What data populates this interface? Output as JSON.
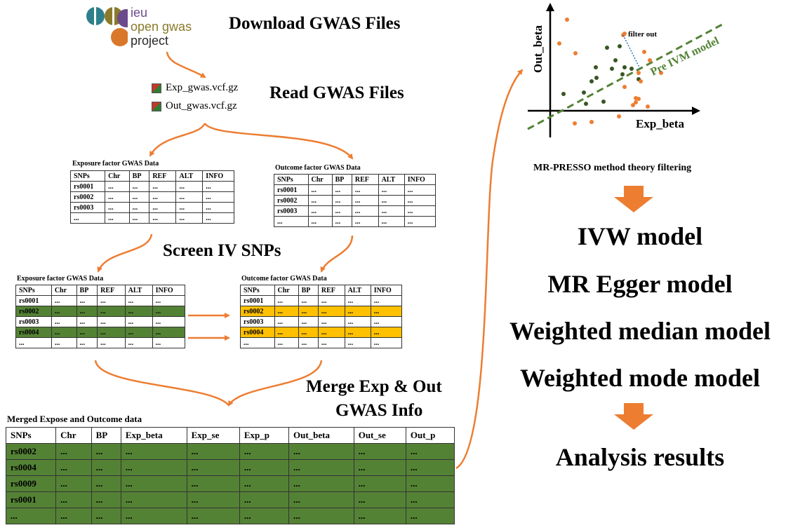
{
  "logo": {
    "line1": "ieu",
    "line2": "open gwas",
    "line3": "project"
  },
  "steps": {
    "download": "Download  GWAS  Files",
    "read": "Read  GWAS  Files",
    "screen": "Screen  IV  SNPs",
    "merge_line1": "Merge Exp & Out",
    "merge_line2": "GWAS Info"
  },
  "files": {
    "exp": "Exp_gwas.vcf.gz",
    "out": "Out_gwas.vcf.gz"
  },
  "tables": {
    "headers": [
      "SNPs",
      "Chr",
      "BP",
      "REF",
      "ALT",
      "INFO"
    ],
    "exposure_caption": "Exposure factor GWAS Data",
    "outcome_caption": "Outcome factor GWAS Data",
    "rows": [
      [
        "rs0001",
        "...",
        "...",
        "...",
        "...",
        "..."
      ],
      [
        "rs0002",
        "...",
        "...",
        "...",
        "...",
        "..."
      ],
      [
        "rs0003",
        "...",
        "...",
        "...",
        "...",
        "..."
      ],
      [
        "...",
        "...",
        "...",
        "...",
        "...",
        "..."
      ]
    ],
    "screened_rows": [
      [
        "rs0001",
        "...",
        "...",
        "...",
        "...",
        "..."
      ],
      [
        "rs0002",
        "...",
        "...",
        "...",
        "...",
        "..."
      ],
      [
        "rs0003",
        "...",
        "...",
        "...",
        "...",
        "..."
      ],
      [
        "rs0004",
        "...",
        "...",
        "...",
        "...",
        "..."
      ],
      [
        "...",
        "...",
        "...",
        "...",
        "...",
        "..."
      ]
    ]
  },
  "merged": {
    "caption": "Merged Expose and Outcome data",
    "headers": [
      "SNPs",
      "Chr",
      "BP",
      "Exp_beta",
      "Exp_se",
      "Exp_p",
      "Out_beta",
      "Out_se",
      "Out_p"
    ],
    "rows": [
      [
        "rs0002",
        "...",
        "...",
        "...",
        "...",
        "...",
        "...",
        "...",
        "..."
      ],
      [
        "rs0004",
        "...",
        "...",
        "...",
        "...",
        "...",
        "...",
        "...",
        "..."
      ],
      [
        "rs0009",
        "...",
        "...",
        "...",
        "...",
        "...",
        "...",
        "...",
        "..."
      ],
      [
        "rs0001",
        "...",
        "...",
        "...",
        "...",
        "...",
        "...",
        "...",
        "..."
      ],
      [
        "...",
        "...",
        "...",
        "...",
        "...",
        "...",
        "...",
        "...",
        "..."
      ]
    ]
  },
  "plot": {
    "ylabel": "Out_beta",
    "xlabel": "Exp_beta",
    "annotation": "filter out",
    "line_label": "Pre IVM model",
    "caption": "MR-PRESSO method theory filtering"
  },
  "models": [
    "IVW model",
    "MR Egger model",
    "Weighted median model",
    "Weighted mode model"
  ],
  "result": "Analysis results",
  "colors": {
    "arrow": "#ed7d31",
    "green_highlight": "#548235",
    "yellow_highlight": "#ffc000",
    "inlier_point": "#375623",
    "outlier_point": "#ed7d31",
    "ivm_line": "#548235",
    "logo_teal": "#2e7f8c",
    "logo_olive": "#8a7a2a",
    "logo_orange": "#d9772b",
    "logo_purple": "#6b4a8c"
  }
}
